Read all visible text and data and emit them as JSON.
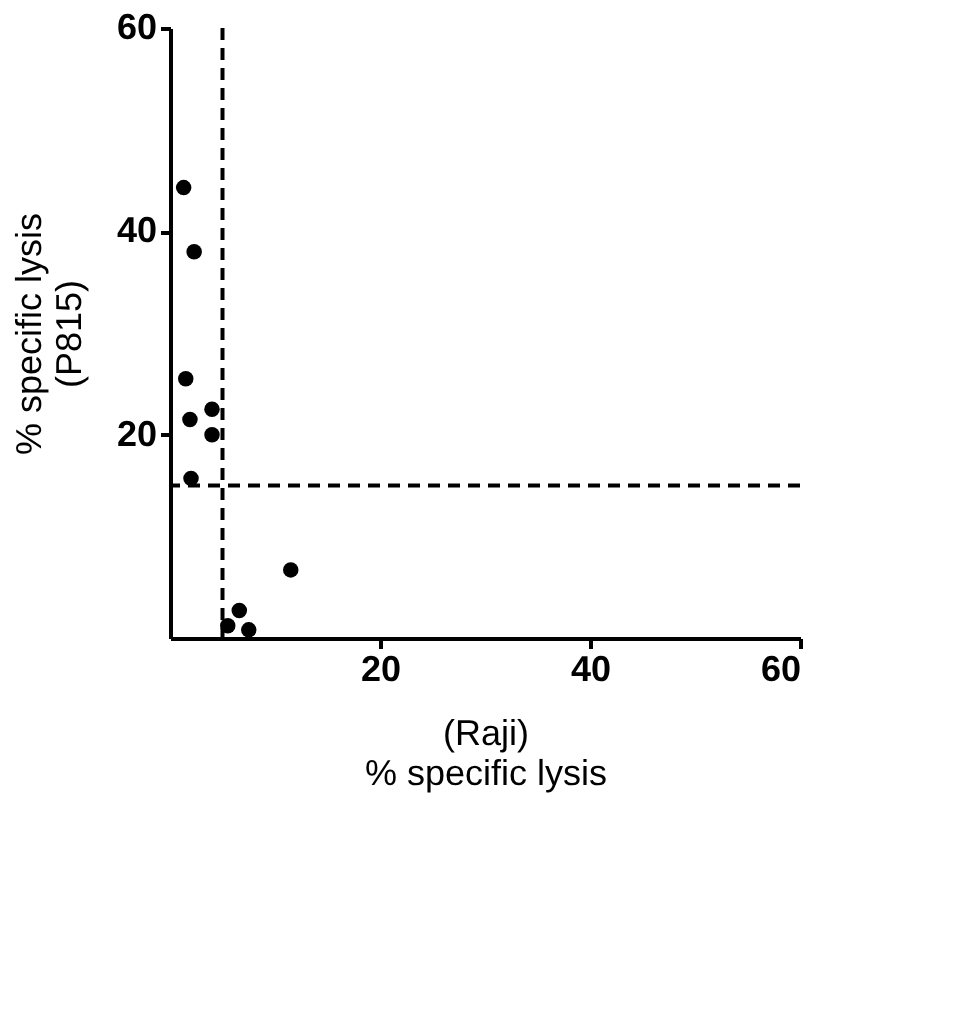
{
  "chart_data": {
    "type": "scatter",
    "xlabel": "(Raji)\n% specific lysis",
    "ylabel": "% specific lysis\n(P815)",
    "x": [
      1.3,
      2.3,
      1.5,
      1.9,
      4,
      4,
      2,
      11.5,
      6.6,
      5.5,
      7.5
    ],
    "series": [
      {
        "color": "#000000",
        "values": [
          44.3,
          38,
          25.5,
          21.5,
          22.5,
          20,
          15.7,
          6.7,
          2.7,
          1.2,
          0.8
        ]
      }
    ],
    "xlim": [
      0,
      60
    ],
    "ylim": [
      0,
      60
    ],
    "xticks": [
      20,
      40,
      60
    ],
    "yticks": [
      20,
      40,
      60
    ],
    "ref_lines": [
      {
        "axis": "x",
        "value": 5,
        "line_style": "dashed"
      },
      {
        "axis": "y",
        "value": 15,
        "line_style": "dashed"
      }
    ],
    "marker": "circle",
    "grid": false
  }
}
